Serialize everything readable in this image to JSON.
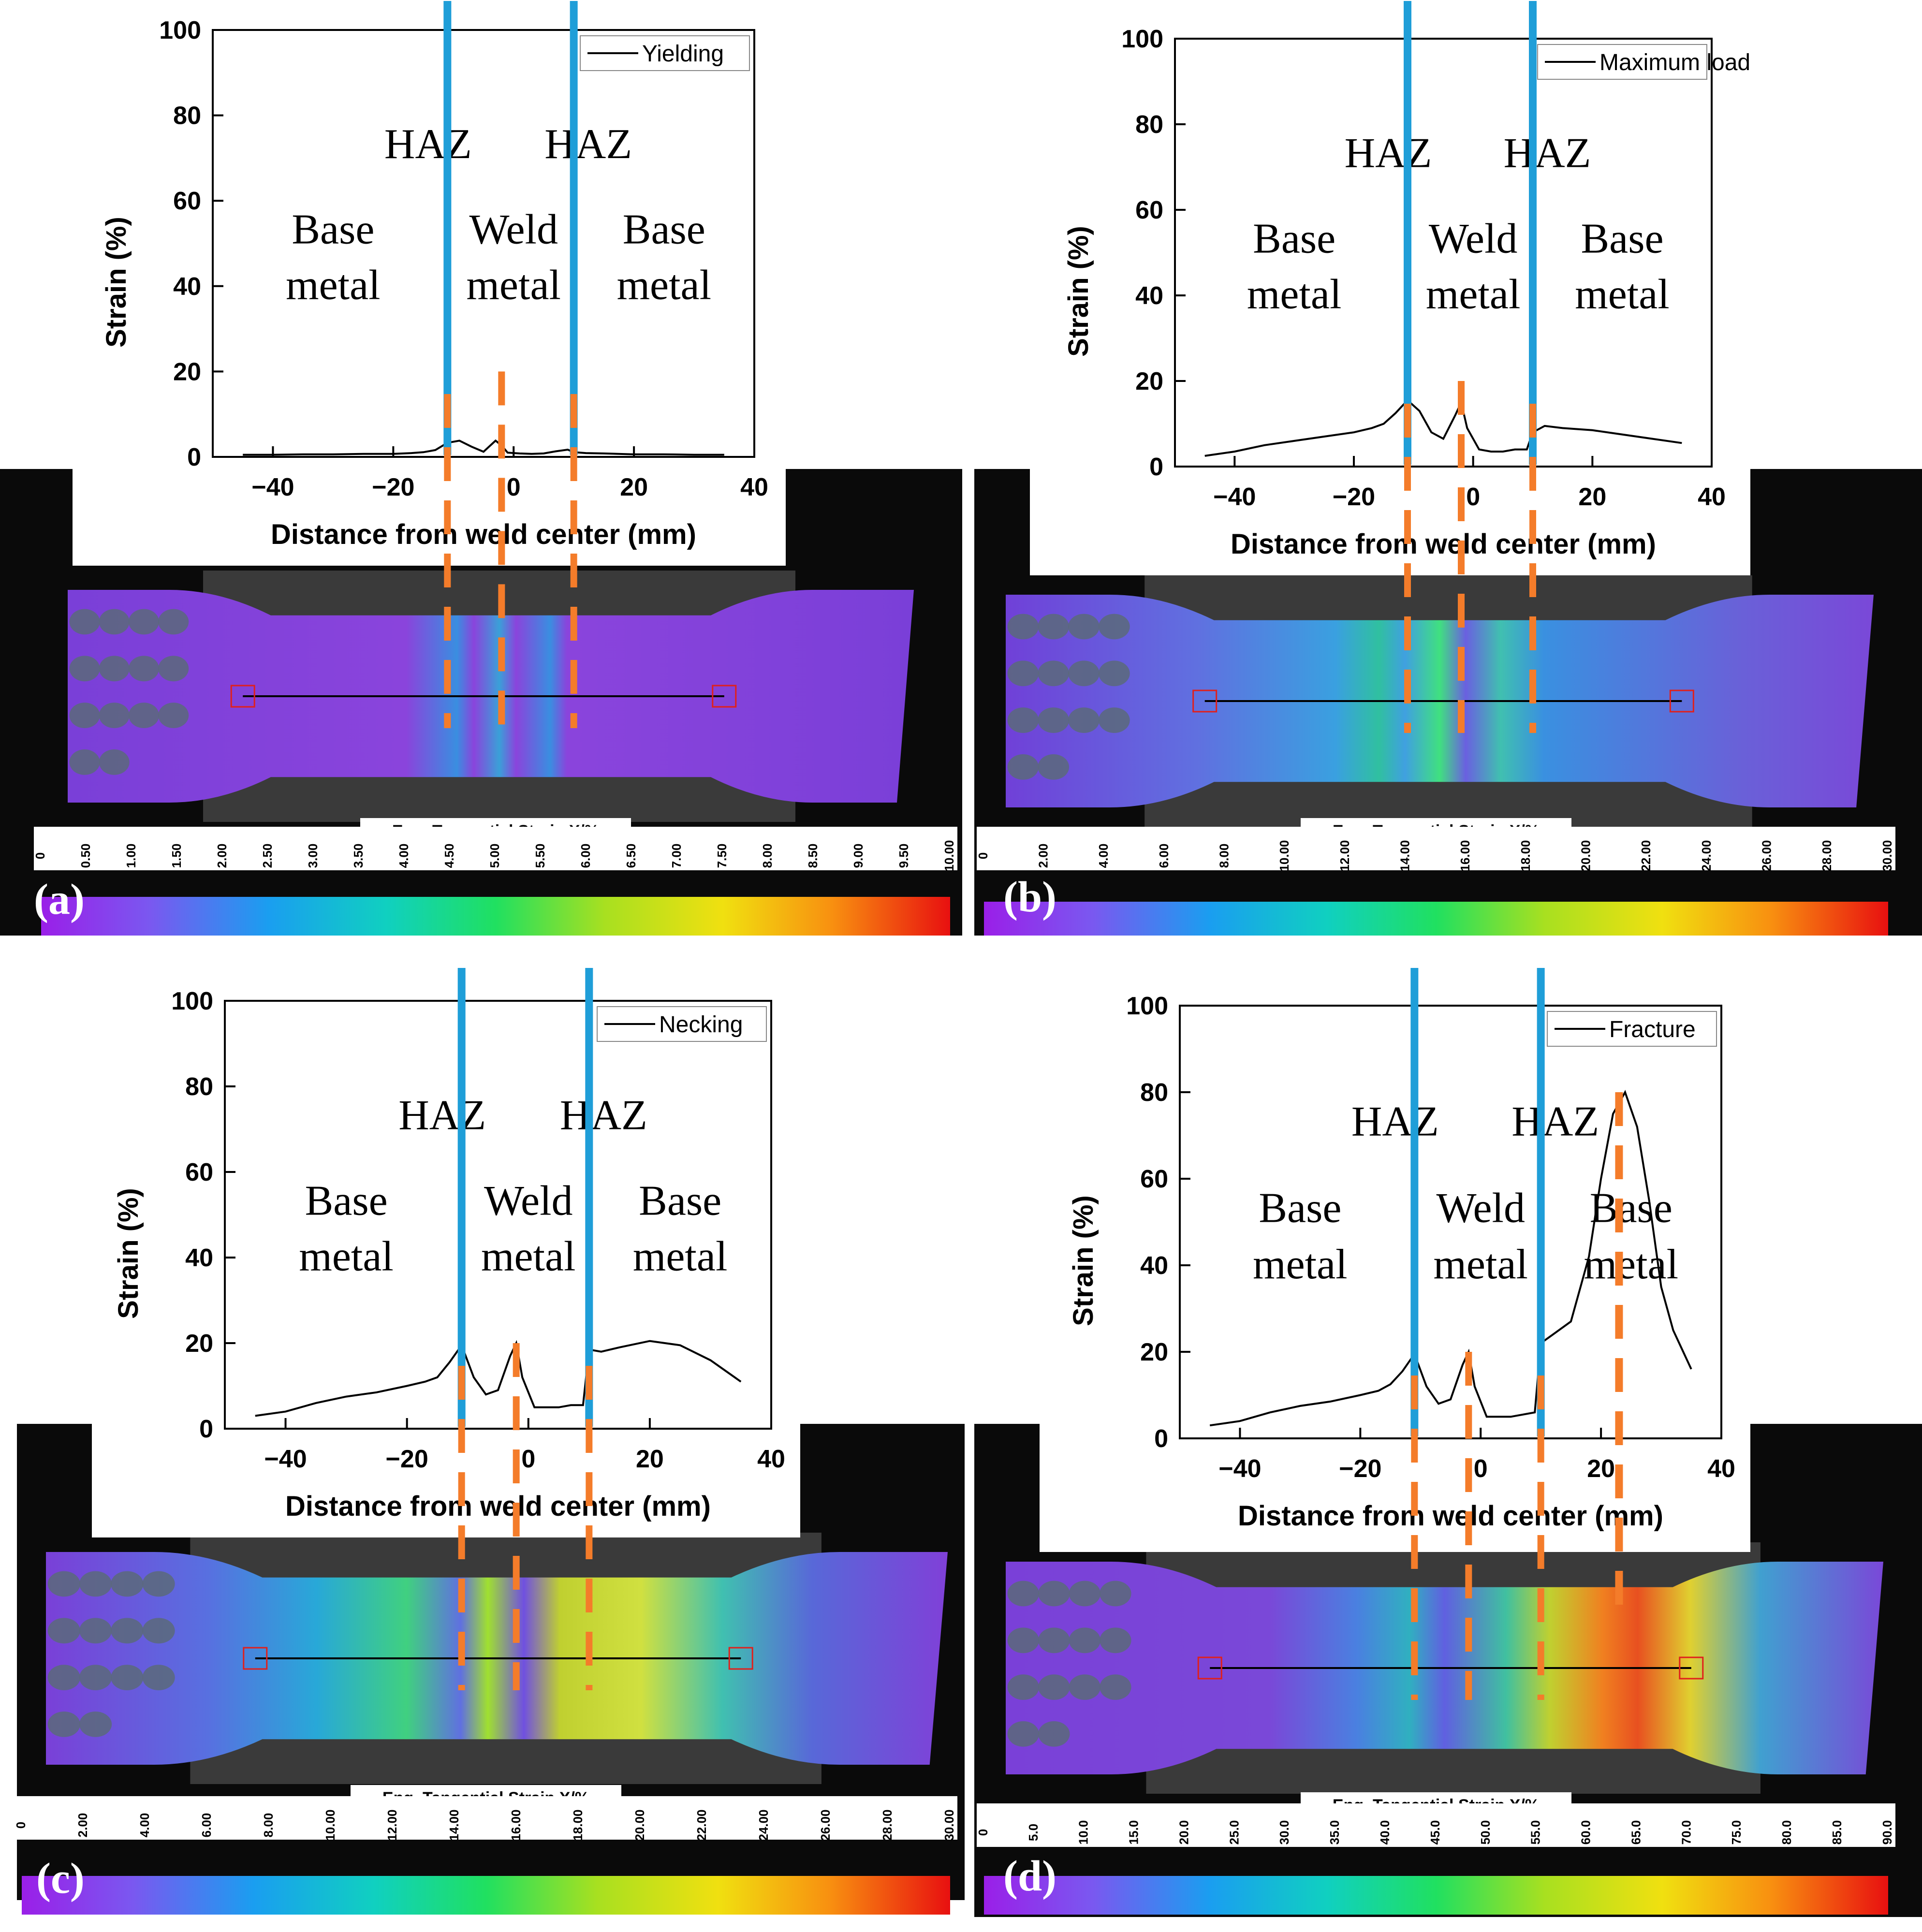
{
  "chart_data": [
    {
      "type": "line",
      "panel": "(a)",
      "series": [
        {
          "name": "Yielding",
          "x": [
            -45,
            -40,
            -35,
            -30,
            -25,
            -20,
            -17,
            -15,
            -13,
            -11,
            -9,
            -7,
            -5,
            -3,
            -2,
            -1,
            1,
            3,
            5,
            7,
            9,
            10,
            12,
            15,
            20,
            25,
            30,
            35
          ],
          "y": [
            0.5,
            0.5,
            0.6,
            0.6,
            0.7,
            0.7,
            0.9,
            1.1,
            1.6,
            3.3,
            3.8,
            2.4,
            1.2,
            3.8,
            2.7,
            1.0,
            0.8,
            0.7,
            0.8,
            1.3,
            1.7,
            1.1,
            0.9,
            0.8,
            0.6,
            0.6,
            0.5,
            0.5
          ]
        }
      ],
      "xlabel": "Distance from weld center (mm)",
      "ylabel": "Strain (%)",
      "xlim": [
        -50,
        40
      ],
      "ylim": [
        0,
        100
      ],
      "xticks": [
        -40,
        -20,
        0,
        20,
        40
      ],
      "yticks": [
        0,
        20,
        40,
        60,
        80,
        100
      ],
      "legend": "top-right",
      "haz_lines_x": [
        -11,
        10
      ],
      "weld_center_x": -2,
      "zones": {
        "haz_left": "HAZ",
        "haz_right": "HAZ",
        "base_left": [
          "Base",
          "metal"
        ],
        "weld": [
          "Weld",
          "metal"
        ],
        "base_right": [
          "Base",
          "metal"
        ]
      },
      "colorbar": {
        "title": "Eng. Tangential Strain X/%",
        "ticks": [
          "0",
          "0.50",
          "1.00",
          "1.50",
          "2.00",
          "2.50",
          "3.00",
          "3.50",
          "4.00",
          "4.50",
          "5.00",
          "5.50",
          "6.00",
          "6.50",
          "7.00",
          "7.50",
          "8.00",
          "8.50",
          "9.00",
          "9.50",
          "10.00"
        ]
      }
    },
    {
      "type": "line",
      "panel": "(b)",
      "series": [
        {
          "name": "Maximum load",
          "x": [
            -45,
            -40,
            -35,
            -30,
            -25,
            -20,
            -17,
            -15,
            -13,
            -11,
            -9,
            -7,
            -5,
            -3,
            -2,
            -1,
            1,
            3,
            5,
            7,
            9,
            10,
            12,
            15,
            20,
            25,
            30,
            35
          ],
          "y": [
            2.5,
            3.5,
            5,
            6,
            7,
            8,
            9,
            10,
            12.5,
            15.5,
            13,
            8,
            6.5,
            12,
            15,
            9,
            4,
            3.5,
            3.5,
            4,
            4,
            8,
            9.5,
            9,
            8.5,
            7.5,
            6.5,
            5.5
          ]
        }
      ],
      "xlabel": "Distance from weld center (mm)",
      "ylabel": "Strain (%)",
      "xlim": [
        -50,
        40
      ],
      "ylim": [
        0,
        100
      ],
      "xticks": [
        -40,
        -20,
        0,
        20,
        40
      ],
      "yticks": [
        0,
        20,
        40,
        60,
        80,
        100
      ],
      "legend": "top-right",
      "haz_lines_x": [
        -11,
        10
      ],
      "weld_center_x": -2,
      "zones": {
        "haz_left": "HAZ",
        "haz_right": "HAZ",
        "base_left": [
          "Base",
          "metal"
        ],
        "weld": [
          "Weld",
          "metal"
        ],
        "base_right": [
          "Base",
          "metal"
        ]
      },
      "colorbar": {
        "title": "Eng. Tangential Strain X/%",
        "ticks": [
          "0",
          "2.00",
          "4.00",
          "6.00",
          "8.00",
          "10.00",
          "12.00",
          "14.00",
          "16.00",
          "18.00",
          "20.00",
          "22.00",
          "24.00",
          "26.00",
          "28.00",
          "30.00"
        ]
      }
    },
    {
      "type": "line",
      "panel": "(c)",
      "series": [
        {
          "name": "Necking",
          "x": [
            -45,
            -40,
            -35,
            -30,
            -25,
            -20,
            -17,
            -15,
            -13,
            -11,
            -9,
            -7,
            -5,
            -3,
            -2,
            -1,
            1,
            3,
            5,
            7,
            9,
            10,
            12,
            15,
            20,
            25,
            30,
            35
          ],
          "y": [
            3,
            4,
            6,
            7.5,
            8.5,
            10,
            11,
            12,
            15.5,
            19.5,
            12,
            8,
            9,
            17,
            20,
            12,
            5,
            5,
            5,
            5.5,
            5.5,
            18.5,
            18,
            19,
            20.5,
            19.5,
            16,
            11
          ]
        }
      ],
      "xlabel": "Distance from weld center (mm)",
      "ylabel": "Strain (%)",
      "xlim": [
        -50,
        40
      ],
      "ylim": [
        0,
        100
      ],
      "xticks": [
        -40,
        -20,
        0,
        20,
        40
      ],
      "yticks": [
        0,
        20,
        40,
        60,
        80,
        100
      ],
      "legend": "top-right",
      "haz_lines_x": [
        -11,
        10
      ],
      "weld_center_x": -2,
      "zones": {
        "haz_left": "HAZ",
        "haz_right": "HAZ",
        "base_left": [
          "Base",
          "metal"
        ],
        "weld": [
          "Weld",
          "metal"
        ],
        "base_right": [
          "Base",
          "metal"
        ]
      },
      "colorbar": {
        "title": "Eng. Tangential Strain X/%",
        "ticks": [
          "0",
          "2.00",
          "4.00",
          "6.00",
          "8.00",
          "10.00",
          "12.00",
          "14.00",
          "16.00",
          "18.00",
          "20.00",
          "22.00",
          "24.00",
          "26.00",
          "28.00",
          "30.00"
        ]
      }
    },
    {
      "type": "line",
      "panel": "(d)",
      "series": [
        {
          "name": "Fracture",
          "x": [
            -45,
            -40,
            -35,
            -30,
            -25,
            -20,
            -17,
            -15,
            -13,
            -11,
            -9,
            -7,
            -5,
            -3,
            -2,
            -1,
            1,
            3,
            5,
            7,
            9,
            10,
            12,
            15,
            18,
            20,
            22,
            24,
            26,
            28,
            30,
            32,
            35
          ],
          "y": [
            3,
            4,
            6,
            7.5,
            8.5,
            10,
            11,
            12.5,
            15.5,
            19.5,
            12,
            8,
            9,
            17,
            20,
            12,
            5,
            5,
            5,
            5.5,
            6,
            22,
            24,
            27,
            42,
            60,
            75,
            80,
            72,
            55,
            35,
            25,
            16
          ]
        }
      ],
      "xlabel": "Distance from weld center (mm)",
      "ylabel": "Strain (%)",
      "xlim": [
        -50,
        40
      ],
      "ylim": [
        0,
        100
      ],
      "xticks": [
        -40,
        -20,
        0,
        20,
        40
      ],
      "yticks": [
        0,
        20,
        40,
        60,
        80,
        100
      ],
      "legend": "top-right",
      "haz_lines_x": [
        -11,
        10
      ],
      "weld_center_x": -2,
      "fracture_x": 23,
      "zones": {
        "haz_left": "HAZ",
        "haz_right": "HAZ",
        "base_left": [
          "Base",
          "metal"
        ],
        "weld": [
          "Weld",
          "metal"
        ],
        "base_right": [
          "Base",
          "metal"
        ]
      },
      "colorbar": {
        "title": "Eng. Tangential Strain X/%",
        "ticks": [
          "0",
          "5.0",
          "10.0",
          "15.0",
          "20.0",
          "25.0",
          "30.0",
          "35.0",
          "40.0",
          "45.0",
          "50.0",
          "55.0",
          "60.0",
          "65.0",
          "70.0",
          "75.0",
          "80.0",
          "85.0",
          "90.0"
        ]
      }
    }
  ],
  "colors": {
    "haz_line": "#1f9ed8",
    "dash_line": "#f47c2a",
    "curve": "#000000",
    "marker_box": "#e0201c"
  },
  "strain_fields": {
    "a": "low",
    "b": "medium",
    "c": "high",
    "d": "fracture"
  }
}
